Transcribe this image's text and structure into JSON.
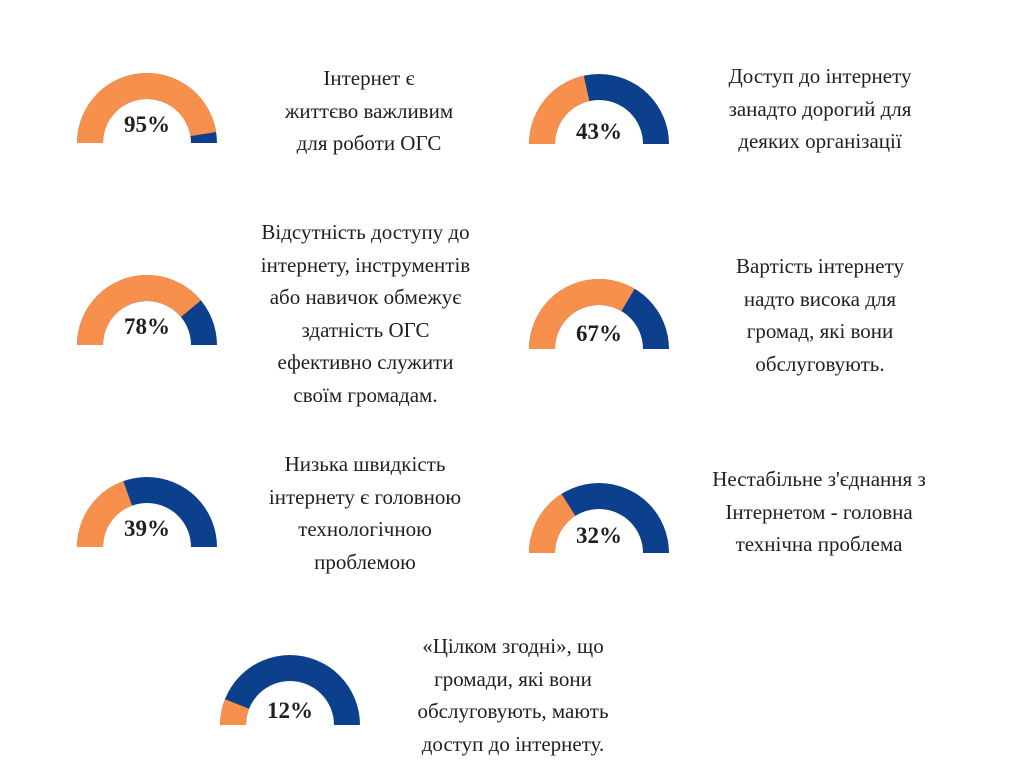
{
  "colors": {
    "agree": "#F7904C",
    "other": "#0C3F8C"
  },
  "chart_data": [
    {
      "type": "gauge",
      "value": 95,
      "label": "95%",
      "caption": "Інтернет є\nжиттєво важливим\nдля роботи ОГС"
    },
    {
      "type": "gauge",
      "value": 43,
      "label": "43%",
      "caption": "Доступ до інтернету\nзанадто дорогий для\nдеяких організації"
    },
    {
      "type": "gauge",
      "value": 78,
      "label": "78%",
      "caption": "Відсутність доступу до\nінтернету, інструментів\nабо навичок обмежує\nздатність ОГС\nефективно служити\nсвоїм громадам."
    },
    {
      "type": "gauge",
      "value": 67,
      "label": "67%",
      "caption": "Вартість інтернету\nнадто висока для\nгромад, які вони\nобслуговують."
    },
    {
      "type": "gauge",
      "value": 39,
      "label": "39%",
      "caption": "Низька швидкість\nінтернету є головною\nтехнологічною\nпроблемою"
    },
    {
      "type": "gauge",
      "value": 32,
      "label": "32%",
      "caption": "Нестабільне з'єднання з\nІнтернетом - головна\nтехнічна проблема"
    },
    {
      "type": "gauge",
      "value": 12,
      "label": "12%",
      "caption": "«Цілком згодні», що\nгромади, які вони\nобслуговують, мають\nдоступ до інтернету."
    }
  ]
}
